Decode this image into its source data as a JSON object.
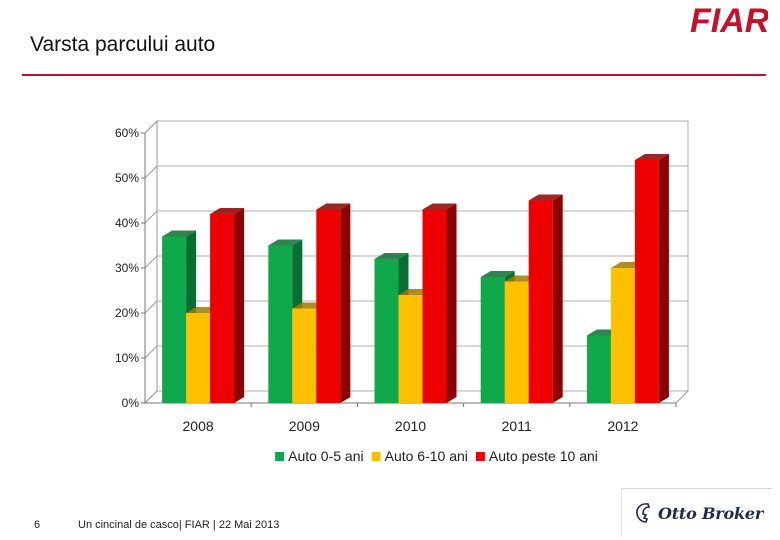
{
  "slide": {
    "title": "Varsta parcului auto",
    "page_number": "6",
    "footer": "Un cincinal de casco| FIAR | 22 Mai 2013"
  },
  "logos": {
    "fiar": "FIAR",
    "otto_broker": "Otto Broker"
  },
  "colors": {
    "accent": "#c8102e"
  },
  "chart_data": {
    "type": "bar",
    "title": "",
    "xlabel": "",
    "ylabel": "",
    "categories": [
      "2008",
      "2009",
      "2010",
      "2011",
      "2012"
    ],
    "series": [
      {
        "name": "Auto 0-5 ani",
        "values": [
          37,
          35,
          32,
          28,
          15
        ],
        "color": "#0fa84a",
        "dark": "#0a6e31"
      },
      {
        "name": "Auto 6-10 ani",
        "values": [
          20,
          21,
          24,
          27,
          30
        ],
        "color": "#ffc000",
        "dark": "#a07800"
      },
      {
        "name": "Auto peste 10 ani",
        "values": [
          42,
          43,
          43,
          45,
          54
        ],
        "color": "#ee0000",
        "dark": "#8c0000"
      }
    ],
    "ylim": [
      0,
      60
    ],
    "yticks": [
      "0%",
      "10%",
      "20%",
      "30%",
      "40%",
      "50%",
      "60%"
    ],
    "grid": true,
    "legend": "bottom"
  }
}
